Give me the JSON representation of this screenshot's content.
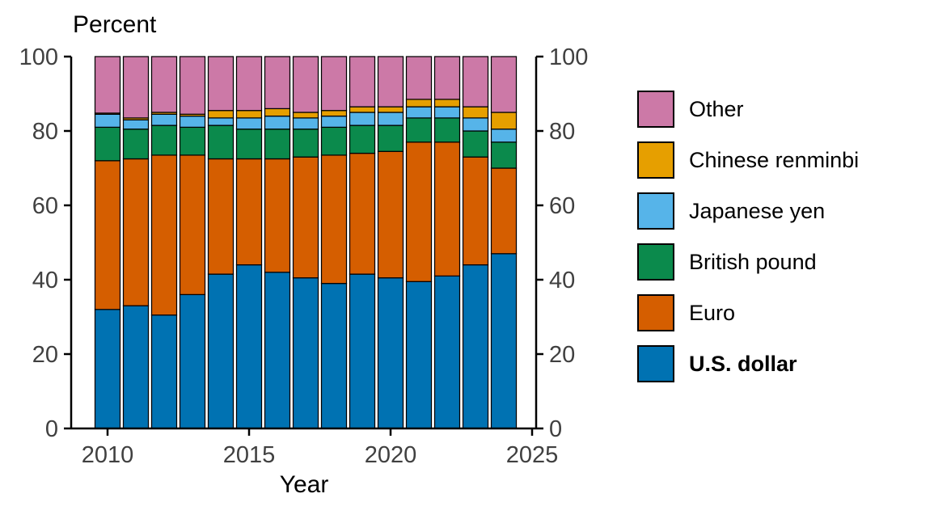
{
  "chart_data": {
    "type": "bar",
    "stacked": true,
    "title": "",
    "ylabel": "Percent",
    "xlabel": "Year",
    "ylim": [
      0,
      100
    ],
    "yticks": [
      0,
      20,
      40,
      60,
      80,
      100
    ],
    "xticks": [
      2010,
      2015,
      2020,
      2025
    ],
    "grid": false,
    "categories": [
      2010,
      2011,
      2012,
      2013,
      2014,
      2015,
      2016,
      2017,
      2018,
      2019,
      2020,
      2021,
      2022,
      2023,
      2024
    ],
    "series": [
      {
        "name": "U.S. dollar",
        "color": "#0072B2",
        "values": [
          32,
          33,
          30.5,
          36,
          41.5,
          44,
          42,
          40.5,
          39,
          41.5,
          40.5,
          39.5,
          41,
          44,
          47
        ]
      },
      {
        "name": "Euro",
        "color": "#D55E00",
        "values": [
          40,
          39.5,
          43,
          37.5,
          31,
          28.5,
          30.5,
          32.5,
          34.5,
          32.5,
          34,
          37.5,
          36,
          29,
          23
        ]
      },
      {
        "name": "British pound",
        "color": "#0B8A4C",
        "values": [
          9,
          8,
          8,
          7.5,
          9,
          8,
          8,
          7.5,
          7.5,
          7.5,
          7,
          6.5,
          6.5,
          7,
          7
        ]
      },
      {
        "name": "Japanese yen",
        "color": "#56B4E9",
        "values": [
          3.5,
          2.5,
          3,
          3,
          2,
          3,
          3.5,
          3,
          3,
          3.5,
          3.5,
          3,
          3,
          3.5,
          3.5
        ]
      },
      {
        "name": "Chinese renminbi",
        "color": "#E69F00",
        "values": [
          0.3,
          0.5,
          0.5,
          0.5,
          2,
          2,
          2,
          1.5,
          1.5,
          1.5,
          1.5,
          2,
          2,
          3,
          4.5
        ]
      },
      {
        "name": "Other",
        "color": "#CC79A7",
        "values": [
          15.2,
          16.5,
          15,
          15.5,
          14.5,
          14.5,
          14,
          15,
          14.5,
          13.5,
          13.5,
          11.5,
          11.5,
          13.5,
          15
        ]
      }
    ],
    "legend": {
      "position": "right",
      "order": [
        "Other",
        "Chinese renminbi",
        "Japanese yen",
        "British pound",
        "Euro",
        "U.S. dollar"
      ],
      "bold": [
        "U.S. dollar"
      ]
    },
    "axis_color": "#000000",
    "tick_label_color": "#404040",
    "bar_outline_color": "#000000"
  }
}
